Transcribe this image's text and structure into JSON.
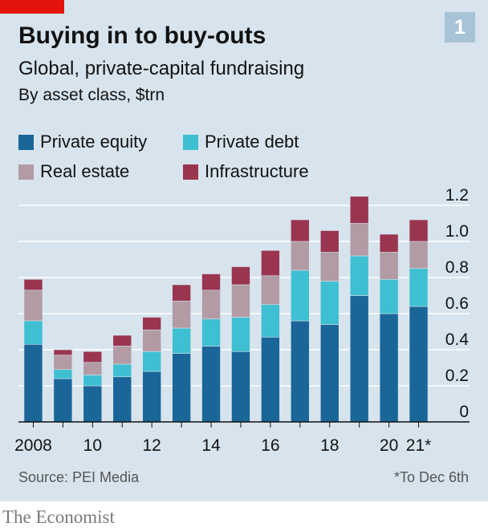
{
  "header": {
    "title": "Buying in to buy-outs",
    "subtitle": "Global, private-capital fundraising",
    "unit": "By asset class, $trn",
    "chart_number": "1"
  },
  "legend": [
    {
      "label": "Private equity",
      "color": "#1a6698"
    },
    {
      "label": "Private debt",
      "color": "#3ebfd2"
    },
    {
      "label": "Real estate",
      "color": "#b29ba4"
    },
    {
      "label": "Infrastructure",
      "color": "#9a3550"
    }
  ],
  "footer": {
    "source": "Source: PEI Media",
    "footnote": "*To Dec 6th",
    "brand": "The Economist"
  },
  "chart_data": {
    "type": "bar",
    "stacked": true,
    "title": "Buying in to buy-outs",
    "categories": [
      "2008",
      "2009",
      "2010",
      "2011",
      "2012",
      "2013",
      "2014",
      "2015",
      "2016",
      "2017",
      "2018",
      "2019",
      "2020",
      "2021*"
    ],
    "x_tick_labels": [
      "2008",
      "",
      "10",
      "",
      "12",
      "",
      "14",
      "",
      "16",
      "",
      "18",
      "",
      "20",
      "21*"
    ],
    "series": [
      {
        "name": "Private equity",
        "color": "#1a6698",
        "values": [
          0.43,
          0.24,
          0.2,
          0.25,
          0.28,
          0.38,
          0.42,
          0.39,
          0.47,
          0.56,
          0.54,
          0.7,
          0.6,
          0.64
        ]
      },
      {
        "name": "Private debt",
        "color": "#3ebfd2",
        "values": [
          0.13,
          0.05,
          0.06,
          0.07,
          0.11,
          0.14,
          0.15,
          0.19,
          0.18,
          0.28,
          0.24,
          0.22,
          0.19,
          0.21
        ]
      },
      {
        "name": "Real estate",
        "color": "#b29ba4",
        "values": [
          0.17,
          0.08,
          0.07,
          0.1,
          0.12,
          0.15,
          0.16,
          0.18,
          0.16,
          0.16,
          0.16,
          0.18,
          0.15,
          0.15
        ]
      },
      {
        "name": "Infrastructure",
        "color": "#9a3550",
        "values": [
          0.06,
          0.03,
          0.06,
          0.06,
          0.07,
          0.09,
          0.09,
          0.1,
          0.14,
          0.12,
          0.12,
          0.15,
          0.1,
          0.12
        ]
      }
    ],
    "y_ticks": [
      "0",
      "0.2",
      "0.4",
      "0.6",
      "0.8",
      "1.0",
      "1.2"
    ],
    "ylim": [
      0,
      1.2
    ],
    "grid": true,
    "legend_position": "top"
  }
}
